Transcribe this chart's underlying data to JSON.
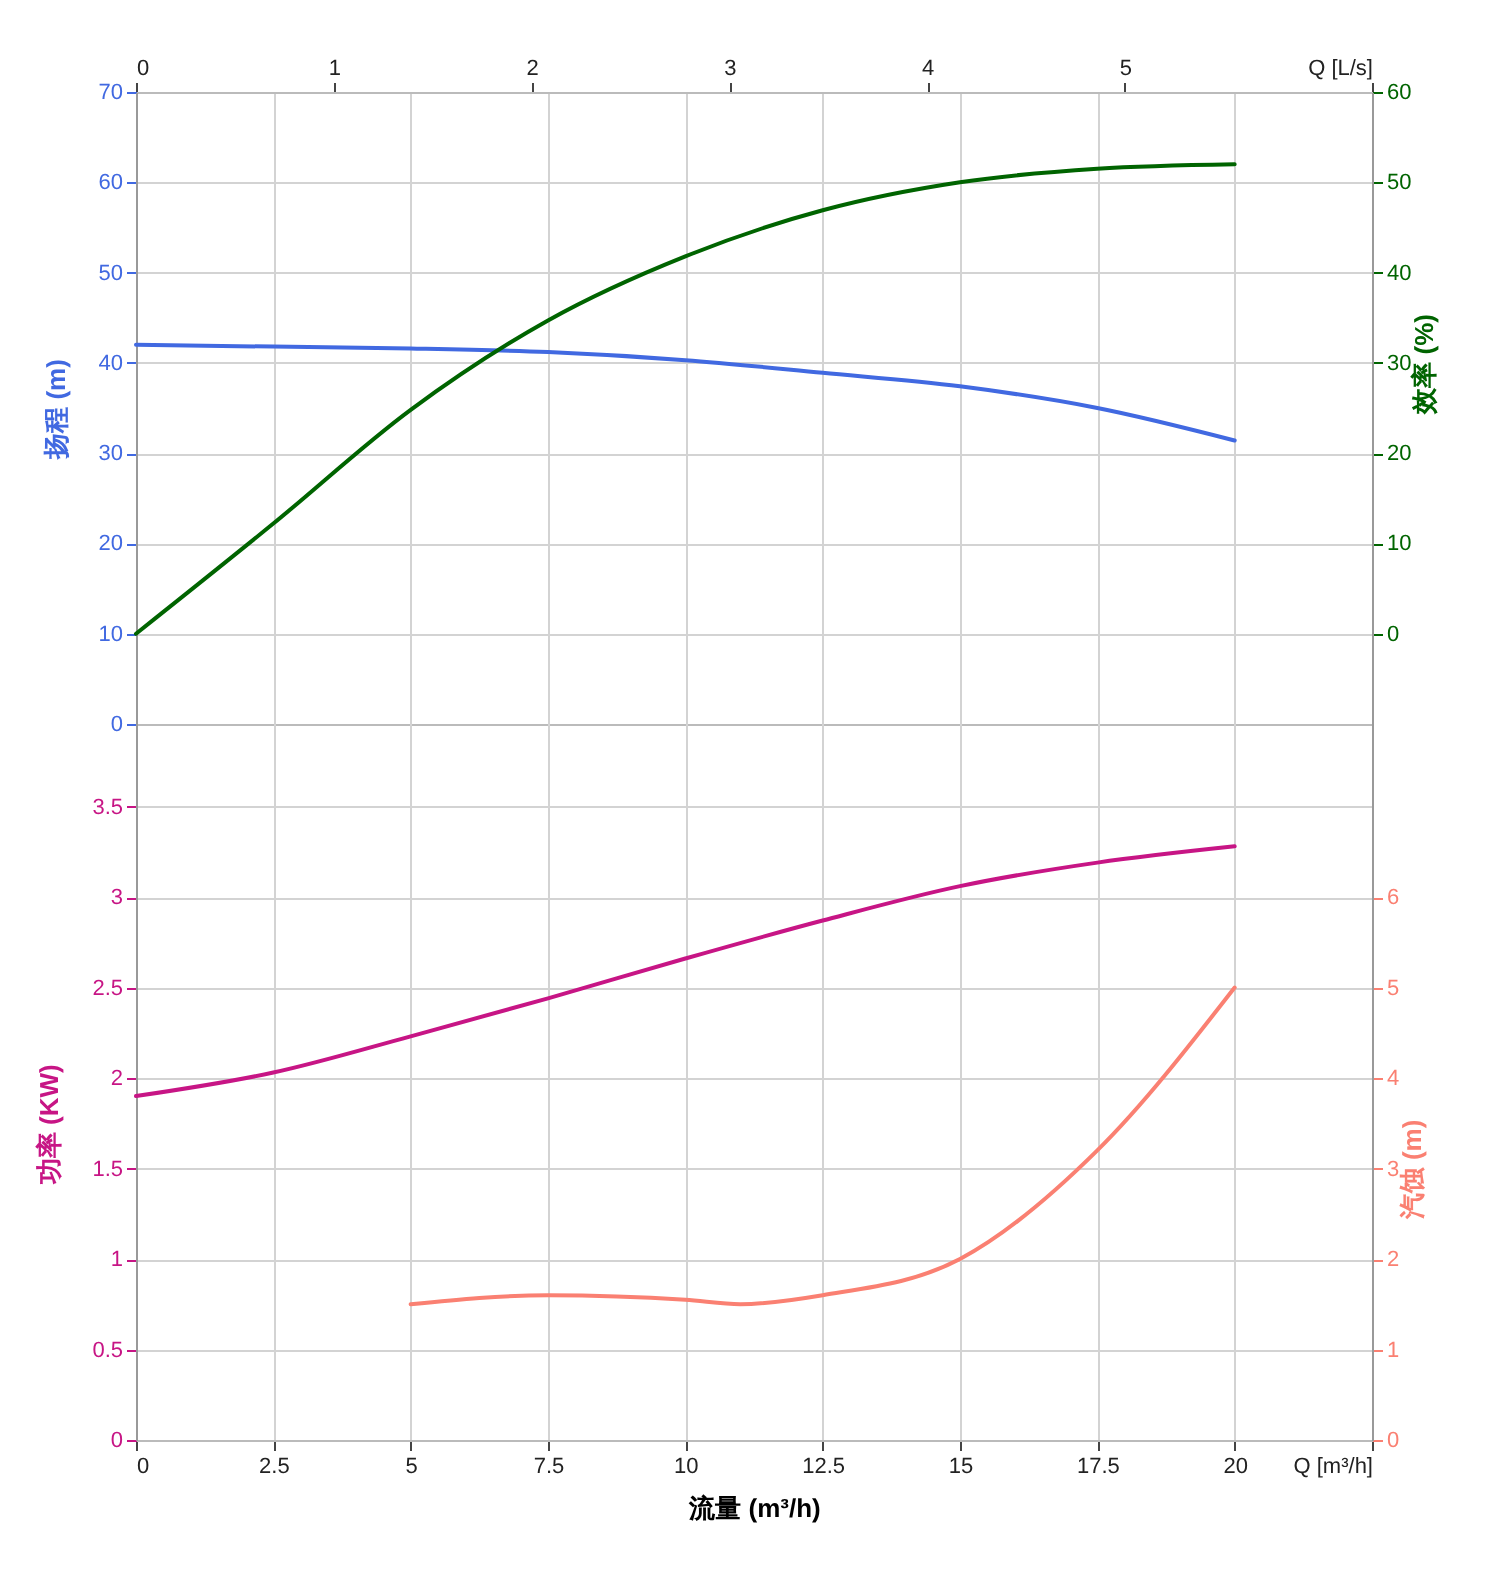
{
  "chart_data": [
    {
      "type": "line",
      "ylabel": "扬程 (m)",
      "y2label": "效率 (%)",
      "x": [
        0,
        2.5,
        5,
        7.5,
        10,
        12.5,
        15,
        17.5,
        20
      ],
      "xlim": [
        0,
        22.5
      ],
      "xticks": [
        0,
        2.5,
        5,
        7.5,
        10,
        12.5,
        15,
        17.5,
        20,
        22.5
      ],
      "x2lim": [
        0,
        6.25
      ],
      "x2ticks": [
        0,
        1,
        2,
        3,
        4,
        5,
        {
          "value": 6.25,
          "label": "Q [L/s]"
        }
      ],
      "ylim": [
        0,
        70
      ],
      "yticks": [
        0,
        10,
        20,
        30,
        40,
        50,
        60,
        70
      ],
      "y2lim": [
        -10,
        60
      ],
      "y2ticks": [
        0,
        10,
        20,
        30,
        40,
        50,
        60
      ],
      "grid": true,
      "marker": "none",
      "line_style": "solid",
      "tick_labels": "y",
      "series": [
        {
          "color": "#4169e1",
          "values": [
            42.0,
            41.8,
            41.6,
            41.2,
            40.3,
            38.9,
            37.4,
            35.0,
            31.4
          ]
        },
        {
          "color": "#006400",
          "axis": "y2",
          "values": [
            0,
            12.2,
            24.8,
            34.7,
            41.8,
            46.9,
            50.0,
            51.5,
            52.0
          ]
        }
      ]
    },
    {
      "type": "line",
      "xlabel": "流量 (m³/h)",
      "ylabel": "功率 (KW)",
      "y2label": "汽蚀 (m)",
      "x": [
        0,
        2.5,
        5,
        7.5,
        10,
        12.5,
        15,
        17.5,
        20
      ],
      "xlim": [
        0,
        22.5
      ],
      "xticks": [
        0,
        2.5,
        5,
        7.5,
        10,
        12.5,
        15,
        17.5,
        20,
        {
          "value": 22.5,
          "label": "Q [m³/h]"
        }
      ],
      "ylim": [
        0,
        4
      ],
      "yticks": [
        0,
        0.5,
        1,
        1.5,
        2,
        2.5,
        3,
        3.5
      ],
      "y2lim": [
        0,
        8
      ],
      "y2ticks": [
        0,
        1,
        2,
        3,
        4,
        5,
        6
      ],
      "grid": true,
      "marker": "none",
      "line_style": "solid",
      "series": [
        {
          "color": "#c71585",
          "values": [
            1.9,
            2.03,
            2.23,
            2.44,
            2.66,
            2.87,
            3.06,
            3.19,
            3.28
          ]
        },
        {
          "color": "#fa8072",
          "axis": "y2",
          "x": [
            5,
            7.5,
            10,
            11,
            12.5,
            15,
            17.5,
            20
          ],
          "values": [
            1.5,
            1.6,
            1.55,
            1.5,
            1.6,
            2.0,
            3.2,
            5.0
          ]
        }
      ]
    }
  ]
}
